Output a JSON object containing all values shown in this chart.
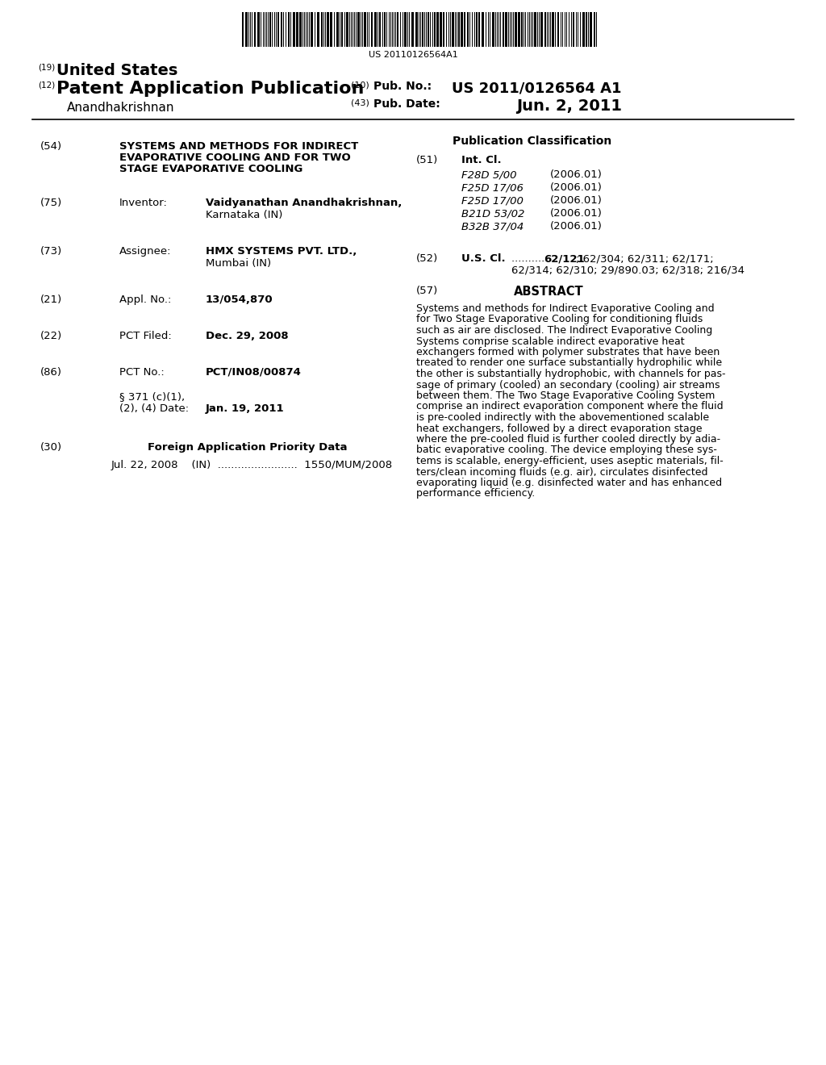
{
  "bg_color": "#ffffff",
  "barcode_text": "US 20110126564A1",
  "field_54_title_line1": "SYSTEMS AND METHODS FOR INDIRECT",
  "field_54_title_line2": "EVAPORATIVE COOLING AND FOR TWO",
  "field_54_title_line3": "STAGE EVAPORATIVE COOLING",
  "field_75_inv_line1": "Vaidyanathan Anandhakrishnan,",
  "field_75_inv_line2": "Karnataka (IN)",
  "field_73_val_line1": "HMX SYSTEMS PVT. LTD.,",
  "field_73_val_line2": "Mumbai (IN)",
  "field_21_value": "13/054,870",
  "field_22_value": "Dec. 29, 2008",
  "field_86_value": "PCT/IN08/00874",
  "field_86b_date": "Jan. 19, 2011",
  "field_30_value": "Jul. 22, 2008    (IN)  ........................  1550/MUM/2008",
  "field_51_items": [
    [
      "F28D 5/00",
      "(2006.01)"
    ],
    [
      "F25D 17/06",
      "(2006.01)"
    ],
    [
      "F25D 17/00",
      "(2006.01)"
    ],
    [
      "B21D 53/02",
      "(2006.01)"
    ],
    [
      "B32B 37/04",
      "(2006.01)"
    ]
  ],
  "field_52_line1": "62/121; 62/304; 62/311; 62/171;",
  "field_52_line2": "62/314; 62/310; 29/890.03; 62/318; 216/34",
  "abstract_lines": [
    "Systems and methods for Indirect Evaporative Cooling and",
    "for Two Stage Evaporative Cooling for conditioning fluids",
    "such as air are disclosed. The Indirect Evaporative Cooling",
    "Systems comprise scalable indirect evaporative heat",
    "exchangers formed with polymer substrates that have been",
    "treated to render one surface substantially hydrophilic while",
    "the other is substantially hydrophobic, with channels for pas-",
    "sage of primary (cooled) an secondary (cooling) air streams",
    "between them. The Two Stage Evaporative Cooling System",
    "comprise an indirect evaporation component where the fluid",
    "is pre-cooled indirectly with the abovementioned scalable",
    "heat exchangers, followed by a direct evaporation stage",
    "where the pre-cooled fluid is further cooled directly by adia-",
    "batic evaporative cooling. The device employing these sys-",
    "tems is scalable, energy-efficient, uses aseptic materials, fil-",
    "ters/clean incoming fluids (e.g. air), circulates disinfected",
    "evaporating liquid (e.g. disinfected water and has enhanced",
    "performance efficiency."
  ]
}
